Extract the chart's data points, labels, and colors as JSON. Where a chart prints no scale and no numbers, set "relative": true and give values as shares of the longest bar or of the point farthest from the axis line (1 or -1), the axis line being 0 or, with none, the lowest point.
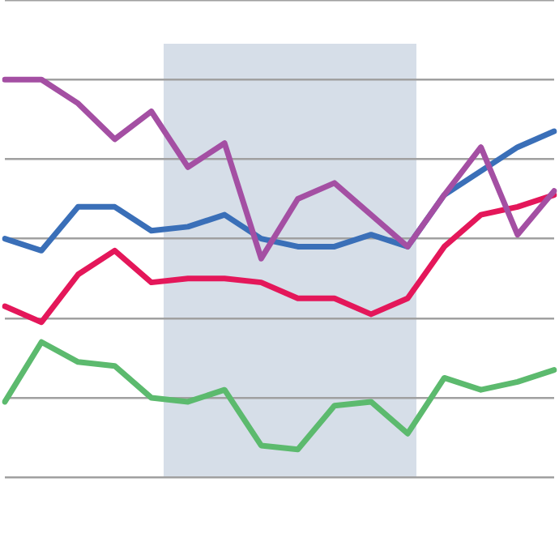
{
  "chart_data": {
    "type": "line",
    "relative": true,
    "categories": [
      null,
      null,
      null,
      null,
      null,
      null,
      null,
      null,
      null,
      null,
      null,
      null,
      null,
      null,
      null,
      null
    ],
    "grid": "y",
    "legend": false,
    "marker": "none",
    "line_style": "solid",
    "series": [
      {
        "color": "#a44fa3",
        "values": [
          1,
          1,
          0.94,
          0.85,
          0.92,
          0.78,
          0.84,
          0.55,
          0.7,
          0.74,
          0.66,
          0.58,
          0.71,
          0.83,
          0.61,
          0.72
        ]
      },
      {
        "color": "#3a6fb8",
        "values": [
          0.6,
          0.57,
          0.68,
          0.68,
          0.62,
          0.63,
          0.66,
          0.6,
          0.58,
          0.58,
          0.61,
          0.58,
          0.71,
          0.77,
          0.83,
          0.87
        ]
      },
      {
        "color": "#e4175a",
        "values": [
          0.43,
          0.39,
          0.51,
          0.57,
          0.49,
          0.5,
          0.5,
          0.49,
          0.45,
          0.45,
          0.41,
          0.45,
          0.58,
          0.66,
          0.68,
          0.71
        ]
      },
      {
        "color": "#5cba6e",
        "values": [
          0.19,
          0.34,
          0.29,
          0.28,
          0.2,
          0.19,
          0.22,
          0.08,
          0.07,
          0.18,
          0.19,
          0.11,
          0.25,
          0.22,
          0.24,
          0.27
        ]
      }
    ]
  }
}
